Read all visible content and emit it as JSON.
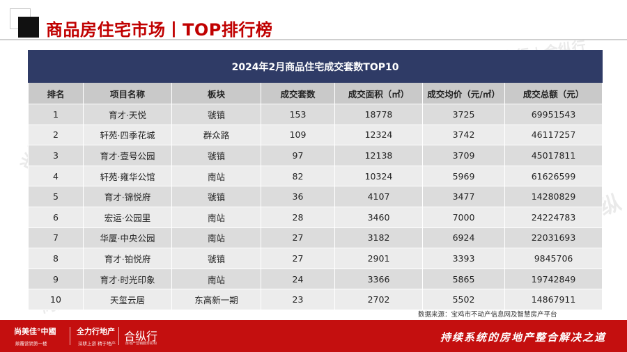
{
  "header": {
    "title": "商品房住宅市场丨TOP排行榜"
  },
  "table": {
    "title": "2024年2月商品住宅成交套数TOP10",
    "columns": [
      "排名",
      "项目名称",
      "板块",
      "成交套数",
      "成交面积（㎡）",
      "成交均价（元/㎡）",
      "成交总额（元）"
    ],
    "rows": [
      [
        "1",
        "育才·天悦",
        "虢镇",
        "153",
        "18778",
        "3725",
        "69951543"
      ],
      [
        "2",
        "轩苑·四季花城",
        "群众路",
        "109",
        "12324",
        "3742",
        "46117257"
      ],
      [
        "3",
        "育才·壹号公园",
        "虢镇",
        "97",
        "12138",
        "3709",
        "45017811"
      ],
      [
        "4",
        "轩苑·雍华公馆",
        "南站",
        "82",
        "10324",
        "5969",
        "61626599"
      ],
      [
        "5",
        "育才·锦悦府",
        "虢镇",
        "36",
        "4107",
        "3477",
        "14280829"
      ],
      [
        "6",
        "宏运·公园里",
        "南站",
        "28",
        "3460",
        "7000",
        "24224783"
      ],
      [
        "7",
        "华厦·中央公园",
        "南站",
        "27",
        "3182",
        "6924",
        "22031693"
      ],
      [
        "8",
        "育才·铂悦府",
        "虢镇",
        "27",
        "2901",
        "3393",
        "9845706"
      ],
      [
        "9",
        "育才·时光印象",
        "南站",
        "24",
        "3366",
        "5865",
        "19742849"
      ],
      [
        "10",
        "天玺云居",
        "东高新一期",
        "23",
        "2702",
        "5502",
        "14867911"
      ]
    ]
  },
  "source_note": "数据来源：宝鸡市不动产信息网及智慧房产平台",
  "watermarks": [
    "尚美佳",
    "全力行 | 合纵行",
    "纵",
    "尚美"
  ],
  "footer": {
    "brand1": "尚美佳°中國",
    "brand1_sub": "颠覆营销第一楼",
    "brand2": "全力行地产",
    "brand2_sub": "深耕上游 精于地产",
    "brand3": "合纵行",
    "brand3_sub": "房地产营销服务机构",
    "slogan": "持续系统的房地产整合解决之道"
  },
  "colors": {
    "accent": "#c00000",
    "table_title_bg": "#2f3b66",
    "header_bg": "#c9c9c9",
    "row_odd": "#dcdcdc",
    "row_even": "#ececec",
    "footer_bg": "#c40f0f"
  }
}
